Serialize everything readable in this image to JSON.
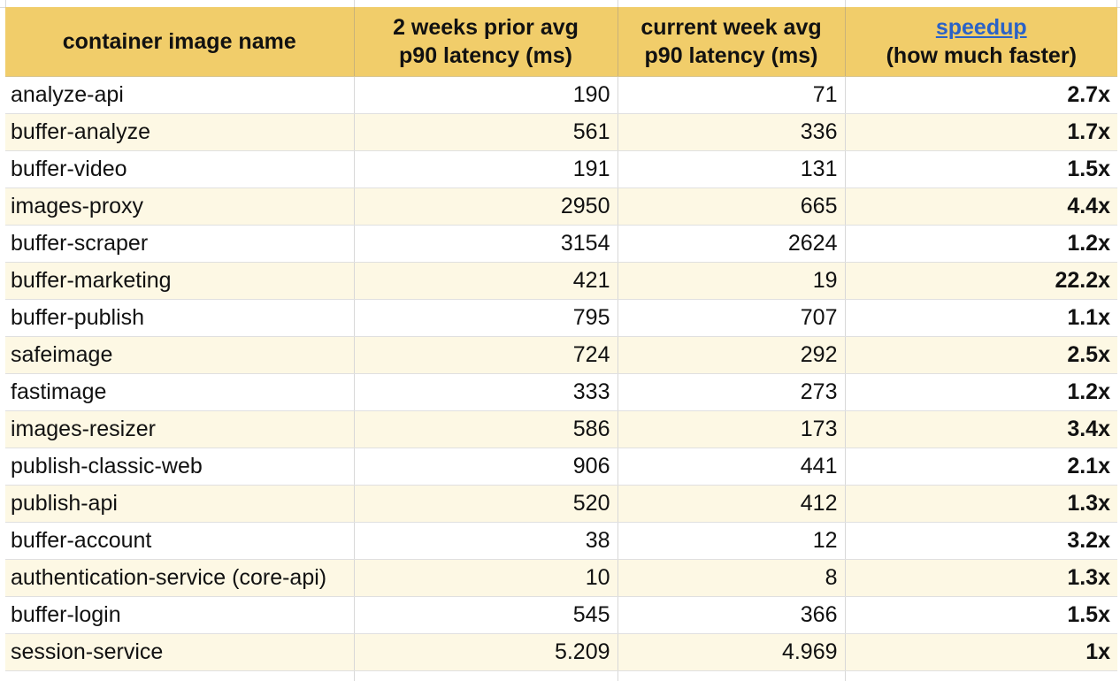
{
  "table": {
    "headers": {
      "name": [
        "container image name"
      ],
      "prior": [
        "2 weeks prior avg",
        "p90 latency (ms)"
      ],
      "current": [
        "current week avg",
        "p90 latency  (ms)"
      ],
      "speedup_link": "speedup",
      "speedup_sub": "(how much faster)"
    },
    "rows": [
      {
        "name": "analyze-api",
        "prior": "190",
        "current": "71",
        "speedup": "2.7x"
      },
      {
        "name": "buffer-analyze",
        "prior": "561",
        "current": "336",
        "speedup": "1.7x"
      },
      {
        "name": "buffer-video",
        "prior": "191",
        "current": "131",
        "speedup": "1.5x"
      },
      {
        "name": "images-proxy",
        "prior": "2950",
        "current": "665",
        "speedup": "4.4x"
      },
      {
        "name": "buffer-scraper",
        "prior": "3154",
        "current": "2624",
        "speedup": "1.2x"
      },
      {
        "name": "buffer-marketing",
        "prior": "421",
        "current": "19",
        "speedup": "22.2x"
      },
      {
        "name": "buffer-publish",
        "prior": "795",
        "current": "707",
        "speedup": "1.1x"
      },
      {
        "name": "safeimage",
        "prior": "724",
        "current": "292",
        "speedup": "2.5x"
      },
      {
        "name": "fastimage",
        "prior": "333",
        "current": "273",
        "speedup": "1.2x"
      },
      {
        "name": "images-resizer",
        "prior": "586",
        "current": "173",
        "speedup": "3.4x"
      },
      {
        "name": "publish-classic-web",
        "prior": "906",
        "current": "441",
        "speedup": "2.1x"
      },
      {
        "name": "publish-api",
        "prior": "520",
        "current": "412",
        "speedup": "1.3x"
      },
      {
        "name": "buffer-account",
        "prior": "38",
        "current": "12",
        "speedup": "3.2x"
      },
      {
        "name": "authentication-service (core-api)",
        "prior": "10",
        "current": "8",
        "speedup": "1.3x"
      },
      {
        "name": "buffer-login",
        "prior": "545",
        "current": "366",
        "speedup": "1.5x"
      },
      {
        "name": "session-service",
        "prior": "5.209",
        "current": "4.969",
        "speedup": "1x"
      }
    ]
  },
  "colors": {
    "header_bg": "#f1cd6a",
    "band_even": "#fdf8e4",
    "band_odd": "#ffffff",
    "link": "#2a62c7"
  }
}
